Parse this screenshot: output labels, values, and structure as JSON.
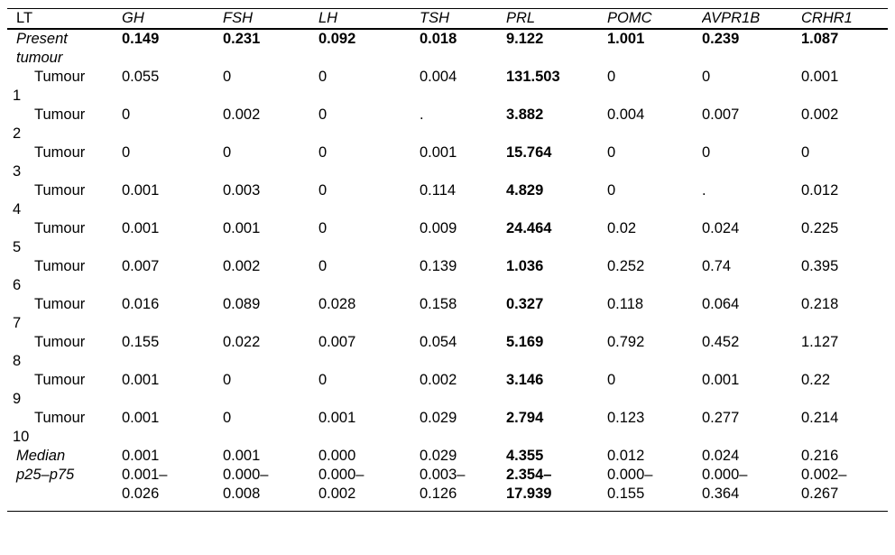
{
  "table": {
    "bold_column": "PRL",
    "columns": [
      {
        "label": "LT",
        "italic": false
      },
      {
        "label": "GH",
        "italic": true
      },
      {
        "label": "FSH",
        "italic": true
      },
      {
        "label": "LH",
        "italic": true
      },
      {
        "label": "TSH",
        "italic": true
      },
      {
        "label": "PRL",
        "italic": true
      },
      {
        "label": "POMC",
        "italic": true
      },
      {
        "label": "AVPR1B",
        "italic": true
      },
      {
        "label": "CRHR1",
        "italic": true
      }
    ],
    "rows": [
      {
        "label": "Present\ntumour",
        "label_italic": true,
        "indent": false,
        "bold_all": true,
        "values": [
          "0.149",
          "0.231",
          "0.092",
          "0.018",
          "9.122",
          "1.001",
          "0.239",
          "1.087"
        ]
      },
      {
        "label": "Tumour\n1",
        "label_italic": false,
        "indent": true,
        "bold_all": false,
        "values": [
          "0.055",
          "0",
          "0",
          "0.004",
          "131.503",
          "0",
          "0",
          "0.001"
        ]
      },
      {
        "label": "Tumour\n2",
        "label_italic": false,
        "indent": true,
        "bold_all": false,
        "values": [
          "0",
          "0.002",
          "0",
          ".",
          "3.882",
          "0.004",
          "0.007",
          "0.002"
        ]
      },
      {
        "label": "Tumour\n3",
        "label_italic": false,
        "indent": true,
        "bold_all": false,
        "values": [
          "0",
          "0",
          "0",
          "0.001",
          "15.764",
          "0",
          "0",
          "0"
        ]
      },
      {
        "label": "Tumour\n4",
        "label_italic": false,
        "indent": true,
        "bold_all": false,
        "values": [
          "0.001",
          "0.003",
          "0",
          "0.114",
          "4.829",
          "0",
          ".",
          "0.012"
        ]
      },
      {
        "label": "Tumour\n5",
        "label_italic": false,
        "indent": true,
        "bold_all": false,
        "values": [
          "0.001",
          "0.001",
          "0",
          "0.009",
          "24.464",
          "0.02",
          "0.024",
          "0.225"
        ]
      },
      {
        "label": "Tumour\n6",
        "label_italic": false,
        "indent": true,
        "bold_all": false,
        "values": [
          "0.007",
          "0.002",
          "0",
          "0.139",
          "1.036",
          "0.252",
          "0.74",
          "0.395"
        ]
      },
      {
        "label": "Tumour\n7",
        "label_italic": false,
        "indent": true,
        "bold_all": false,
        "values": [
          "0.016",
          "0.089",
          "0.028",
          "0.158",
          "0.327",
          "0.118",
          "0.064",
          "0.218"
        ]
      },
      {
        "label": "Tumour\n8",
        "label_italic": false,
        "indent": true,
        "bold_all": false,
        "values": [
          "0.155",
          "0.022",
          "0.007",
          "0.054",
          "5.169",
          "0.792",
          "0.452",
          "1.127"
        ]
      },
      {
        "label": "Tumour\n9",
        "label_italic": false,
        "indent": true,
        "bold_all": false,
        "values": [
          "0.001",
          "0",
          "0",
          "0.002",
          "3.146",
          "0",
          "0.001",
          "0.22"
        ]
      },
      {
        "label": "Tumour\n10",
        "label_italic": false,
        "indent": true,
        "bold_all": false,
        "values": [
          "0.001",
          "0",
          "0.001",
          "0.029",
          "2.794",
          "0.123",
          "0.277",
          "0.214"
        ]
      },
      {
        "label": "Median",
        "label_italic": true,
        "indent": false,
        "bold_all": false,
        "values": [
          "0.001",
          "0.001",
          "0.000",
          "0.029",
          "4.355",
          "0.012",
          "0.024",
          "0.216"
        ]
      },
      {
        "label": "p25–p75",
        "label_italic": true,
        "indent": false,
        "bold_all": false,
        "values": [
          "0.001–\n0.026",
          "0.000–\n0.008",
          "0.000–\n0.002",
          "0.003–\n0.126",
          "2.354–\n17.939",
          "0.000–\n0.155",
          "0.000–\n0.364",
          "0.002–\n0.267"
        ]
      }
    ]
  }
}
